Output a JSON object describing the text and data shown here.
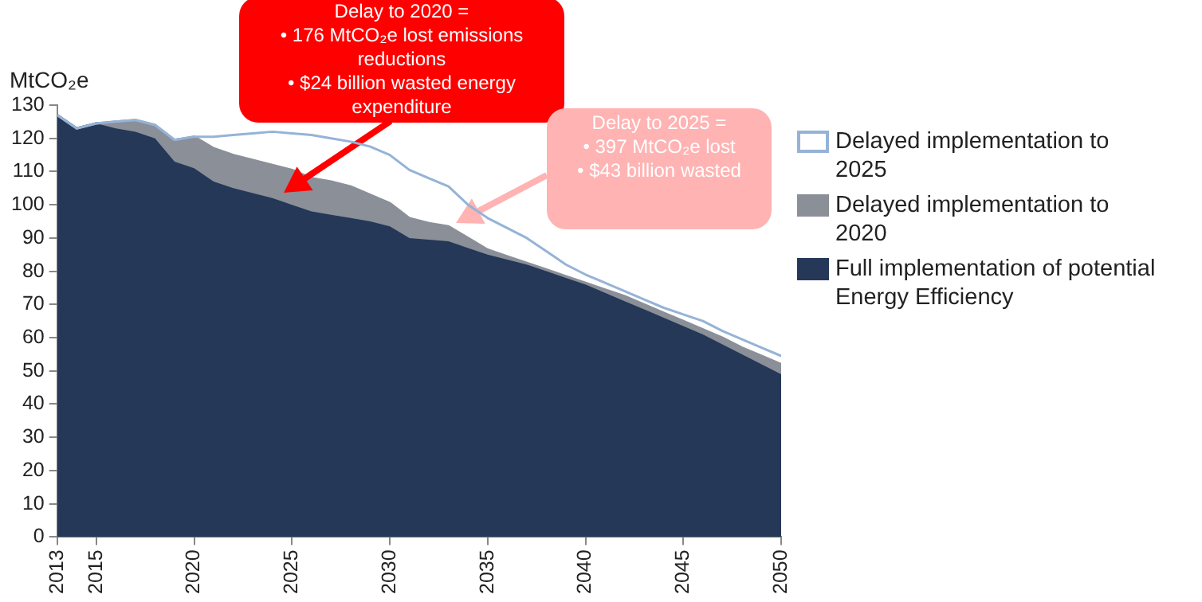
{
  "chart_data": {
    "type": "area",
    "ylabel": "MtCO₂e",
    "x": [
      2013,
      2014,
      2015,
      2016,
      2017,
      2018,
      2019,
      2020,
      2021,
      2022,
      2023,
      2024,
      2025,
      2026,
      2027,
      2028,
      2029,
      2030,
      2031,
      2032,
      2033,
      2034,
      2035,
      2036,
      2037,
      2038,
      2039,
      2040,
      2041,
      2042,
      2043,
      2044,
      2045,
      2046,
      2047,
      2048,
      2049,
      2050
    ],
    "series": [
      {
        "name": "Delayed implementation to 2025",
        "type": "line",
        "color": "#95b3d7",
        "values": [
          127,
          123,
          124.5,
          125,
          125.5,
          124,
          119.5,
          120.5,
          120.5,
          121,
          121.5,
          122,
          121.5,
          121,
          120,
          119,
          117.5,
          115,
          110.5,
          108,
          105.5,
          100,
          96,
          93,
          90,
          86,
          82,
          79,
          76.5,
          74,
          71.5,
          69,
          67,
          65,
          62,
          59.5,
          57,
          54.5
        ]
      },
      {
        "name": "Delayed implementation to 2020",
        "color": "#8a8f98",
        "values": [
          127,
          123,
          124.5,
          125,
          125.5,
          124,
          119.5,
          120.5,
          117,
          115,
          113.5,
          112,
          110.5,
          108,
          107,
          105.5,
          103,
          100.5,
          96,
          94.5,
          93.5,
          90,
          86.5,
          84.5,
          82.5,
          80.5,
          78.5,
          76.5,
          74.5,
          72.5,
          70,
          67.5,
          65,
          62.5,
          60,
          57,
          54.5,
          52
        ]
      },
      {
        "name": "Full implementation of potential Energy Efficiency",
        "color": "#253858",
        "values": [
          127,
          123,
          124.5,
          123,
          122,
          120,
          113,
          111,
          107,
          105,
          103.5,
          102,
          100,
          98,
          97,
          96,
          95,
          93.5,
          90,
          89.5,
          89,
          87,
          85,
          83.5,
          82,
          80,
          78,
          76,
          73.5,
          71,
          68.5,
          66,
          63.5,
          61,
          58,
          55,
          52,
          49
        ]
      }
    ],
    "xlim": [
      2013,
      2050
    ],
    "xticks": [
      2013,
      2015,
      2020,
      2025,
      2030,
      2035,
      2040,
      2045,
      2050
    ],
    "ylim": [
      0,
      130
    ],
    "yticks": [
      0,
      10,
      20,
      30,
      40,
      50,
      60,
      70,
      80,
      90,
      100,
      110,
      120,
      130
    ],
    "grid": false,
    "legend": "right",
    "marker": "none",
    "annotations": [
      "Delay to 2020 =\n• 176 MtCO₂e lost emissions reductions\n• $24 billion wasted energy expenditure",
      "Delay to 2025 =\n• 397 MtCO₂e lost\n• $43 billion wasted"
    ]
  }
}
